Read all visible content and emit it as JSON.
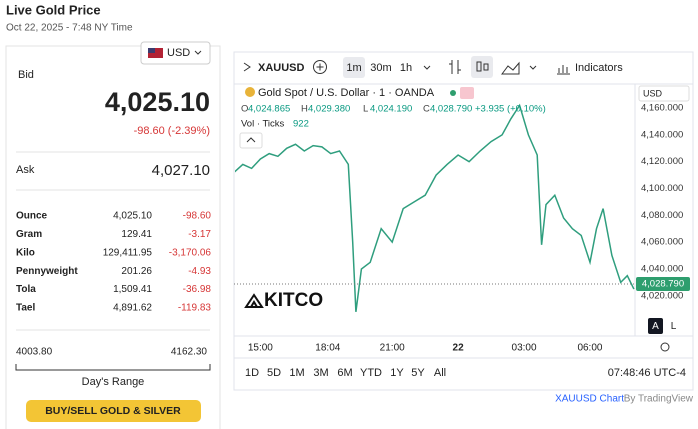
{
  "header": {
    "title": "Live Gold Price",
    "timestamp": "Oct 22, 2025 - 7:48 NY Time"
  },
  "currency": "USD",
  "quote": {
    "bid_label": "Bid",
    "bid": "4,025.10",
    "change": "-98.60 (-2.39%)",
    "ask_label": "Ask",
    "ask": "4,027.10"
  },
  "units": {
    "rows": [
      [
        "Ounce",
        "4,025.10",
        "-98.60"
      ],
      [
        "Gram",
        "129.41",
        "-3.17"
      ],
      [
        "Kilo",
        "129,411.95",
        "-3,170.06"
      ],
      [
        "Pennyweight",
        "201.26",
        "-4.93"
      ],
      [
        "Tola",
        "1,509.41",
        "-36.98"
      ],
      [
        "Tael",
        "4,891.62",
        "-119.83"
      ]
    ]
  },
  "range": {
    "low": "4003.80",
    "high": "4162.30",
    "label": "Day's Range"
  },
  "button": "BUY/SELL GOLD & SILVER",
  "toolbar": {
    "symbol": "XAUUSD",
    "intervals": [
      "1m",
      "30m",
      "1h"
    ],
    "indicators": "Indicators"
  },
  "legend": {
    "title": "Gold Spot / U.S. Dollar · 1 · OANDA",
    "ohlc": [
      [
        "O",
        "4,024.865"
      ],
      [
        "H",
        "4,029.380"
      ],
      [
        "L",
        "4,024.190"
      ],
      [
        "C",
        "4,028.790"
      ]
    ],
    "change": "+3.935 (+0.10%)",
    "volume_label": "Vol · Ticks",
    "volume": "922"
  },
  "watermark": "KITCO",
  "chart_data": {
    "type": "line",
    "color": "#2f9e7e",
    "currency": "USD",
    "x": [
      -1.2,
      -0.8,
      -0.4,
      0,
      0.4,
      0.8,
      1.2,
      1.6,
      2.0,
      2.4,
      2.8,
      3.2,
      3.6,
      4.0,
      4.2,
      4.35,
      4.6,
      5.0,
      5.5,
      6.0,
      6.5,
      7.0,
      7.5,
      8.0,
      8.5,
      9.0,
      9.5,
      10.0,
      10.5,
      11.0,
      11.4,
      11.8,
      12.2,
      12.6,
      12.8,
      13.0,
      13.4,
      13.8,
      14.2,
      14.6,
      15.0,
      15.3,
      15.6,
      16.0,
      16.4,
      16.7,
      17.0
    ],
    "values": [
      4112,
      4118,
      4115,
      4122,
      4126,
      4124,
      4130,
      4133,
      4128,
      4132,
      4131,
      4126,
      4128,
      4118,
      4060,
      4008,
      4040,
      4045,
      4070,
      4060,
      4085,
      4090,
      4095,
      4110,
      4118,
      4125,
      4120,
      4128,
      4135,
      4140,
      4152,
      4162,
      4140,
      4125,
      4058,
      4088,
      4095,
      4078,
      4070,
      4065,
      4045,
      4070,
      4085,
      4050,
      4030,
      4035,
      4025
    ],
    "xlim": [
      -1.2,
      17.05
    ],
    "ylim": [
      3990,
      4166
    ],
    "xticks": [
      {
        "value": 0,
        "label": "15:00"
      },
      {
        "value": 3.07,
        "label": "18:04"
      },
      {
        "value": 6,
        "label": "21:00"
      },
      {
        "value": 9,
        "label": "22"
      },
      {
        "value": 12,
        "label": "03:00"
      },
      {
        "value": 15,
        "label": "06:00"
      }
    ],
    "yticks": [
      {
        "value": 4020,
        "label": "4,020.000"
      },
      {
        "value": 4040,
        "label": "4,040.000"
      },
      {
        "value": 4060,
        "label": "4,060.000"
      },
      {
        "value": 4080,
        "label": "4,080.000"
      },
      {
        "value": 4100,
        "label": "4,100.000"
      },
      {
        "value": 4120,
        "label": "4,120.000"
      },
      {
        "value": 4140,
        "label": "4,140.000"
      },
      {
        "value": 4160,
        "label": "4,160.000"
      }
    ],
    "last_price": {
      "value": 4028.79,
      "label": "4,028.790"
    },
    "scale_buttons": [
      "A",
      "L"
    ]
  },
  "periods": [
    "1D",
    "5D",
    "1M",
    "3M",
    "6M",
    "YTD",
    "1Y",
    "5Y",
    "All"
  ],
  "clock": "07:48:46 UTC-4",
  "footer": {
    "symbol_chart": "XAUUSD Chart",
    "by": "By TradingView"
  }
}
